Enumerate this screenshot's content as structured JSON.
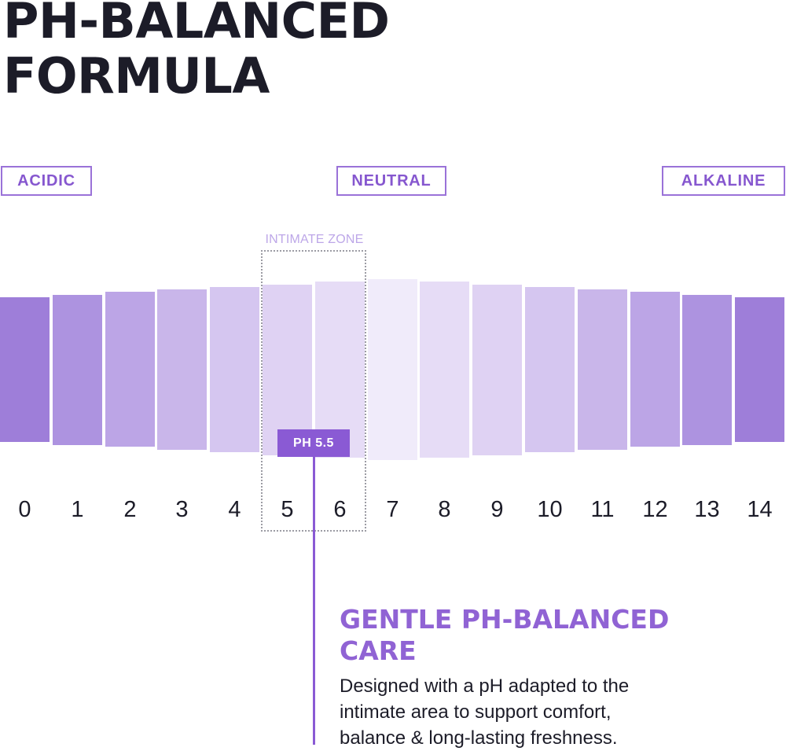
{
  "title": {
    "line1": "PH-BALANCED",
    "line2": "FORMULA"
  },
  "scale_labels": {
    "acidic": "ACIDIC",
    "neutral": "NEUTRAL",
    "alkaline": "ALKALINE"
  },
  "intimate_zone": {
    "label": "INTIMATE ZONE",
    "range": [
      5,
      6
    ]
  },
  "ph_scale": {
    "numbers": [
      "0",
      "1",
      "2",
      "3",
      "4",
      "5",
      "6",
      "7",
      "8",
      "9",
      "10",
      "11",
      "12",
      "13",
      "14"
    ],
    "colors": [
      "#9e7ed9",
      "#ad93e0",
      "#bca5e6",
      "#c9b6ea",
      "#d5c6f0",
      "#dfd2f3",
      "#e6dcf6",
      "#f0ebfa",
      "#e6dcf6",
      "#dfd2f3",
      "#d5c6f0",
      "#c9b6ea",
      "#bca5e6",
      "#ad93e0",
      "#9e7ed9"
    ]
  },
  "marker": {
    "label": "PH 5.5",
    "value": 5.5,
    "color": "#8a5ad4"
  },
  "care": {
    "heading_line1": "GENTLE PH-BALANCED",
    "heading_line2": "CARE",
    "body_line1": "Designed with a pH adapted to the",
    "body_line2": "intimate area to support comfort,",
    "body_line3": "balance & long-lasting freshness."
  }
}
